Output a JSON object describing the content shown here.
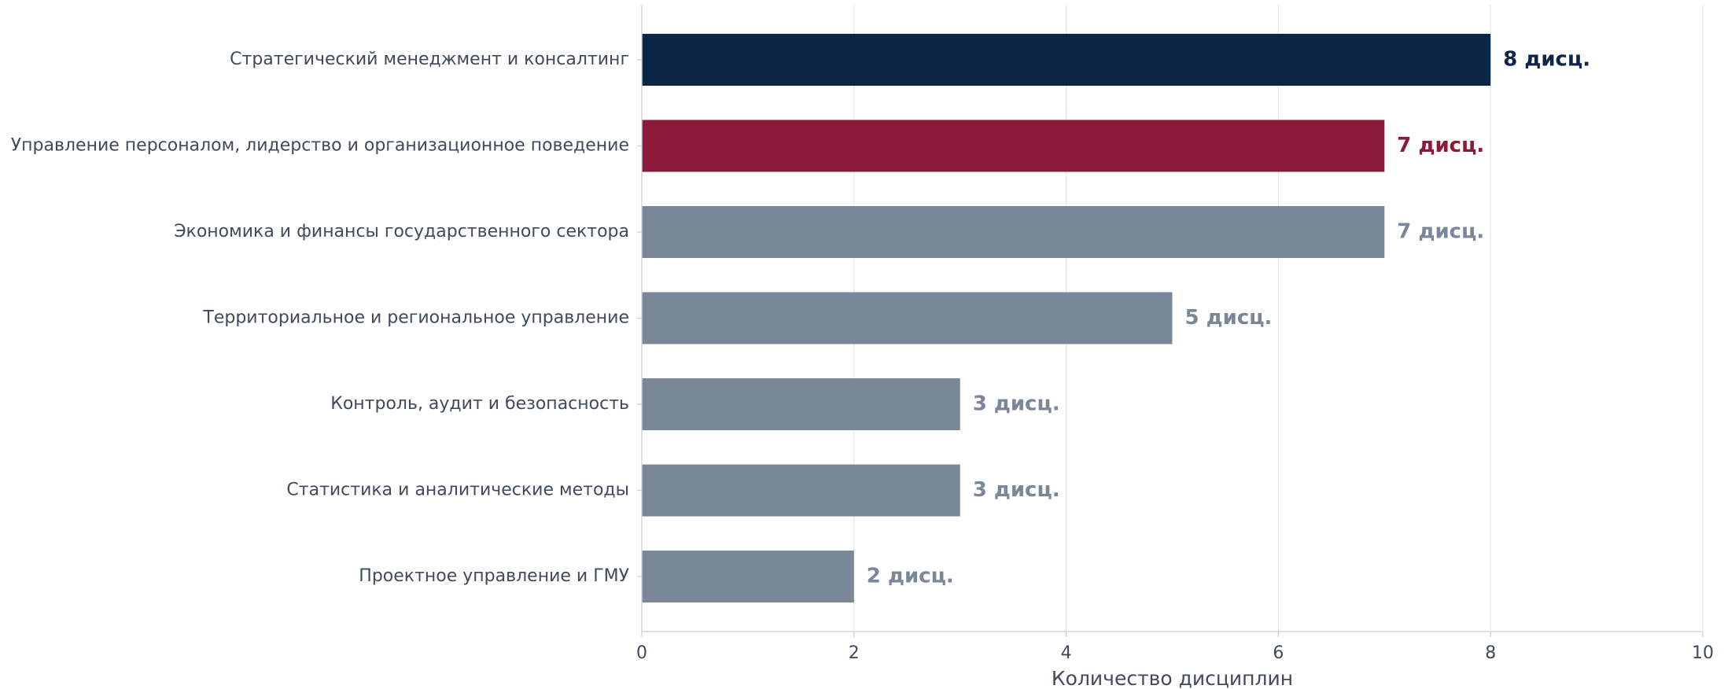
{
  "chart_data": {
    "type": "bar",
    "orientation": "horizontal",
    "categories": [
      "Стратегический менеджмент и консалтинг",
      "Управление персоналом, лидерство и организационное поведение",
      "Экономика и финансы государственного сектора",
      "Территориальное и региональное управление",
      "Контроль, аудит и безопасность",
      "Статистика и аналитические методы",
      "Проектное управление и ГМУ"
    ],
    "values": [
      8,
      7,
      7,
      5,
      3,
      3,
      2
    ],
    "data_labels": [
      "8 дисц.",
      "7 дисц.",
      "7 дисц.",
      "5 дисц.",
      "3 дисц.",
      "3 дисц.",
      "2 дисц."
    ],
    "colors": [
      "#0c2646",
      "#8b1a3a",
      "#7a8799",
      "#7a8799",
      "#7a8799",
      "#7a8799",
      "#7a8799"
    ],
    "xlabel": "Количество дисциплин",
    "ylabel": "",
    "xlim": [
      0,
      10
    ],
    "xticks": [
      0,
      2,
      4,
      6,
      8,
      10
    ],
    "grid": "vertical",
    "legend": "none"
  }
}
